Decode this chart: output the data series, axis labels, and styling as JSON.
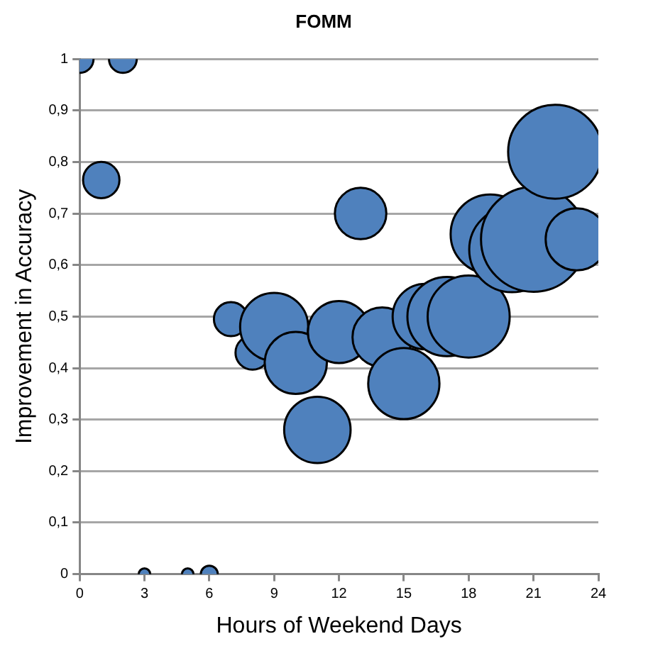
{
  "chart_data": {
    "type": "bubble",
    "title": "FOMM",
    "xlabel": "Hours of Weekend Days",
    "ylabel": "Improvement in Accuracy",
    "x": [
      0,
      1,
      2,
      3,
      5,
      6,
      7,
      8,
      9,
      10,
      11,
      12,
      13,
      14,
      15,
      16,
      17,
      18,
      19,
      20,
      21,
      22,
      23
    ],
    "series": [
      {
        "color": "#4f81bd",
        "values": [
          1,
          0.765,
          1,
          0,
          0,
          0,
          0.495,
          0.43,
          0.48,
          0.41,
          0.28,
          0.47,
          0.7,
          0.46,
          0.37,
          0.5,
          0.5,
          0.5,
          0.66,
          0.63,
          0.65,
          0.82,
          0.65
        ],
        "sizes": [
          0.07,
          0.12,
          0.07,
          0.012,
          0.012,
          0.026,
          0.105,
          0.105,
          0.42,
          0.35,
          0.4,
          0.35,
          0.24,
          0.32,
          0.46,
          0.39,
          0.57,
          0.61,
          0.57,
          0.66,
          1,
          0.8,
          0.35
        ]
      }
    ],
    "xlim": [
      0,
      24
    ],
    "xticks": [
      0,
      3,
      6,
      9,
      12,
      15,
      18,
      21,
      24
    ],
    "ylim": [
      0,
      1
    ],
    "yticks": [
      0,
      {
        "value": 0.1,
        "label": "0,1"
      },
      {
        "value": 0.2,
        "label": "0,2"
      },
      {
        "value": 0.3,
        "label": "0,3"
      },
      {
        "value": 0.4,
        "label": "0,4"
      },
      {
        "value": 0.5,
        "label": "0,5"
      },
      {
        "value": 0.6,
        "label": "0,6"
      },
      {
        "value": 0.7,
        "label": "0,7"
      },
      {
        "value": 0.8,
        "label": "0,8"
      },
      {
        "value": 0.9,
        "label": "0,9"
      },
      1
    ],
    "grid": "y",
    "legend": false
  }
}
